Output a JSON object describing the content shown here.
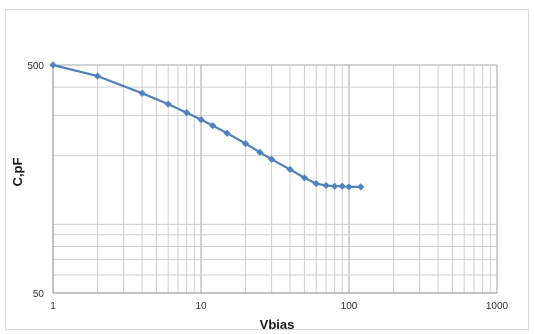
{
  "chart_data": {
    "type": "line",
    "title": "",
    "xlabel": "Vbias",
    "ylabel": "C,pF",
    "x_scale": "log",
    "y_scale": "log",
    "xlim": [
      1,
      1000
    ],
    "ylim": [
      50,
      500
    ],
    "x_tick_labels": [
      "1",
      "10",
      "100",
      "1000"
    ],
    "y_tick_labels": [
      "500",
      "50"
    ],
    "grid": true,
    "legend": "none",
    "series": [
      {
        "color": "#4f81bd",
        "marker": "diamond",
        "points": [
          {
            "x": 1,
            "y": 500
          },
          {
            "x": 2,
            "y": 447
          },
          {
            "x": 4,
            "y": 376
          },
          {
            "x": 6,
            "y": 337
          },
          {
            "x": 8,
            "y": 309
          },
          {
            "x": 10,
            "y": 288
          },
          {
            "x": 12,
            "y": 271
          },
          {
            "x": 15,
            "y": 251
          },
          {
            "x": 20,
            "y": 226
          },
          {
            "x": 25,
            "y": 207
          },
          {
            "x": 30,
            "y": 193
          },
          {
            "x": 40,
            "y": 174
          },
          {
            "x": 50,
            "y": 160
          },
          {
            "x": 60,
            "y": 151
          },
          {
            "x": 70,
            "y": 148
          },
          {
            "x": 80,
            "y": 147
          },
          {
            "x": 90,
            "y": 147
          },
          {
            "x": 100,
            "y": 146
          },
          {
            "x": 120,
            "y": 146
          }
        ]
      }
    ]
  }
}
